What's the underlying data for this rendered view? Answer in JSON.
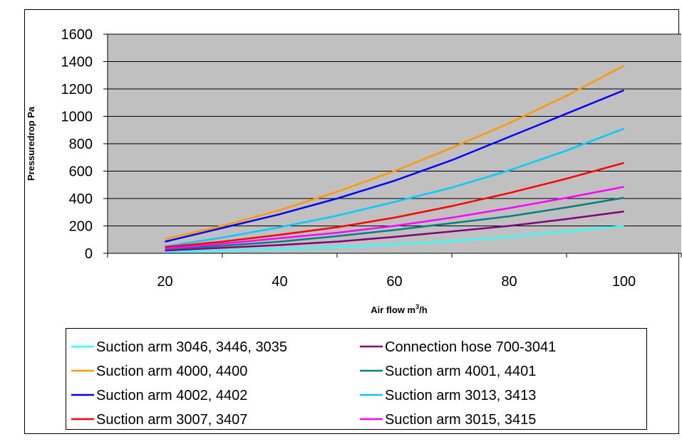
{
  "chart_data": {
    "type": "line",
    "xlabel": "Air flow m",
    "xlabel_sup": "3",
    "xlabel_tail": "/h",
    "ylabel": "Pressuredrop Pa",
    "x": [
      20,
      30,
      40,
      50,
      60,
      70,
      80,
      90,
      100
    ],
    "x_ticks": [
      "20",
      "40",
      "60",
      "80",
      "100"
    ],
    "y_ticks": [
      "0",
      "200",
      "400",
      "600",
      "800",
      "1000",
      "1200",
      "1400",
      "1600"
    ],
    "xlim": [
      10,
      110
    ],
    "ylim": [
      0,
      1600
    ],
    "grid": "horizontal",
    "plot_background": "#c0c0c0",
    "legend_position": "bottom",
    "series": [
      {
        "name": "Suction arm 3046, 3446, 3035",
        "color": "#33ffff",
        "values": [
          10,
          20,
          30,
          45,
          65,
          90,
          120,
          160,
          200
        ]
      },
      {
        "name": "Connection hose 700-3041",
        "color": "#800080",
        "values": [
          20,
          40,
          60,
          85,
          120,
          160,
          200,
          250,
          305
        ]
      },
      {
        "name": "Suction arm 4000, 4400",
        "color": "#ff9900",
        "values": [
          105,
          200,
          315,
          450,
          600,
          770,
          950,
          1150,
          1370
        ]
      },
      {
        "name": "Suction arm 4001, 4401",
        "color": "#008080",
        "values": [
          30,
          55,
          85,
          125,
          170,
          220,
          270,
          335,
          405
        ]
      },
      {
        "name": "Suction arm 4002, 4402",
        "color": "#0000ff",
        "values": [
          85,
          185,
          285,
          400,
          530,
          680,
          850,
          1020,
          1190
        ]
      },
      {
        "name": "Suction arm 3013, 3413",
        "color": "#00ccff",
        "values": [
          50,
          115,
          190,
          275,
          375,
          480,
          605,
          750,
          910
        ]
      },
      {
        "name": "Suction arm 3007, 3407",
        "color": "#ff0000",
        "values": [
          45,
          85,
          135,
          190,
          260,
          345,
          440,
          545,
          660
        ]
      },
      {
        "name": "Suction arm 3015, 3415",
        "color": "#ff00ff",
        "values": [
          35,
          70,
          110,
          150,
          200,
          260,
          330,
          405,
          485
        ]
      }
    ]
  }
}
